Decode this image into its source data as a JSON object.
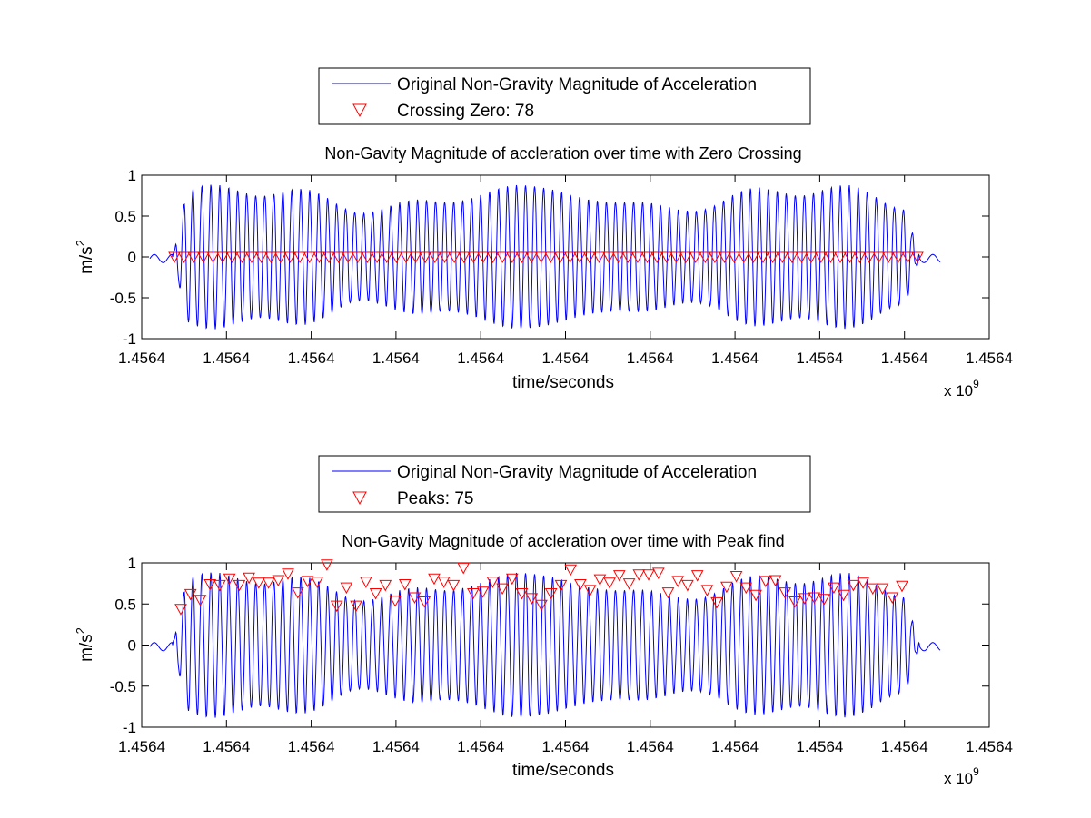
{
  "figure": {
    "background": "#ffffff",
    "line_color": "#0000ff",
    "marker_color": "#ff0000"
  },
  "chart_data": [
    {
      "type": "line",
      "title": "Non-Gavity Magnitude of accleration over time with Zero Crossing",
      "xlabel": "time/seconds",
      "ylabel": "m/s",
      "ylabel_superscript": "2",
      "x_exponent_label": "x 10",
      "x_exponent_power": "9",
      "xticks": [
        "1.4564",
        "1.4564",
        "1.4564",
        "1.4564",
        "1.4564",
        "1.4564",
        "1.4564",
        "1.4564",
        "1.4564",
        "1.4564",
        "1.4564"
      ],
      "yticks": [
        "-1",
        "-0.5",
        "0",
        "0.5",
        "1"
      ],
      "ylim": [
        -1,
        1
      ],
      "grid": false,
      "legend_position": "top-center-outside",
      "legend": [
        {
          "label": "Original Non-Gravity Magnitude of Acceleration",
          "kind": "line",
          "color": "#0000ff"
        },
        {
          "label": "Crossing Zero: 78",
          "kind": "marker",
          "color": "#ff0000"
        }
      ],
      "series": [
        {
          "name": "Original Non-Gravity Magnitude of Acceleration",
          "kind": "signal",
          "color": "#0000ff",
          "note_cycles": 83
        },
        {
          "name": "Crossing Zero: 78",
          "kind": "markers",
          "color": "#ff0000",
          "count": 78,
          "value": 0
        }
      ]
    },
    {
      "type": "line",
      "title": "Non-Gavity Magnitude of accleration over time with Peak find",
      "xlabel": "time/seconds",
      "ylabel": "m/s",
      "ylabel_superscript": "2",
      "x_exponent_label": "x 10",
      "x_exponent_power": "9",
      "xticks": [
        "1.4564",
        "1.4564",
        "1.4564",
        "1.4564",
        "1.4564",
        "1.4564",
        "1.4564",
        "1.4564",
        "1.4564",
        "1.4564",
        "1.4564"
      ],
      "yticks": [
        "-1",
        "-0.5",
        "0",
        "0.5",
        "1"
      ],
      "ylim": [
        -1,
        1
      ],
      "grid": false,
      "legend_position": "top-center-outside",
      "legend": [
        {
          "label": "Original Non-Gravity Magnitude of Acceleration",
          "kind": "line",
          "color": "#0000ff"
        },
        {
          "label": "Peaks: 75",
          "kind": "marker",
          "color": "#ff0000"
        }
      ],
      "series": [
        {
          "name": "Original Non-Gravity Magnitude of Acceleration",
          "kind": "signal",
          "color": "#0000ff"
        },
        {
          "name": "Peaks: 75",
          "kind": "markers",
          "color": "#ff0000",
          "count": 75,
          "values": [
            0.44,
            0.62,
            0.55,
            0.74,
            0.73,
            0.81,
            0.73,
            0.82,
            0.76,
            0.76,
            0.79,
            0.87,
            0.64,
            0.78,
            0.77,
            0.98,
            0.48,
            0.7,
            0.48,
            0.77,
            0.63,
            0.73,
            0.54,
            0.74,
            0.58,
            0.53,
            0.81,
            0.77,
            0.73,
            0.94,
            0.63,
            0.65,
            0.77,
            0.69,
            0.81,
            0.63,
            0.57,
            0.49,
            0.63,
            0.73,
            0.92,
            0.74,
            0.67,
            0.8,
            0.76,
            0.85,
            0.75,
            0.86,
            0.86,
            0.88,
            0.64,
            0.78,
            0.73,
            0.85,
            0.67,
            0.52,
            0.71,
            0.84,
            0.7,
            0.61,
            0.78,
            0.79,
            0.64,
            0.53,
            0.57,
            0.58,
            0.56,
            0.7,
            0.61,
            0.73,
            0.76,
            0.69,
            0.69,
            0.58,
            0.72
          ]
        }
      ]
    }
  ]
}
